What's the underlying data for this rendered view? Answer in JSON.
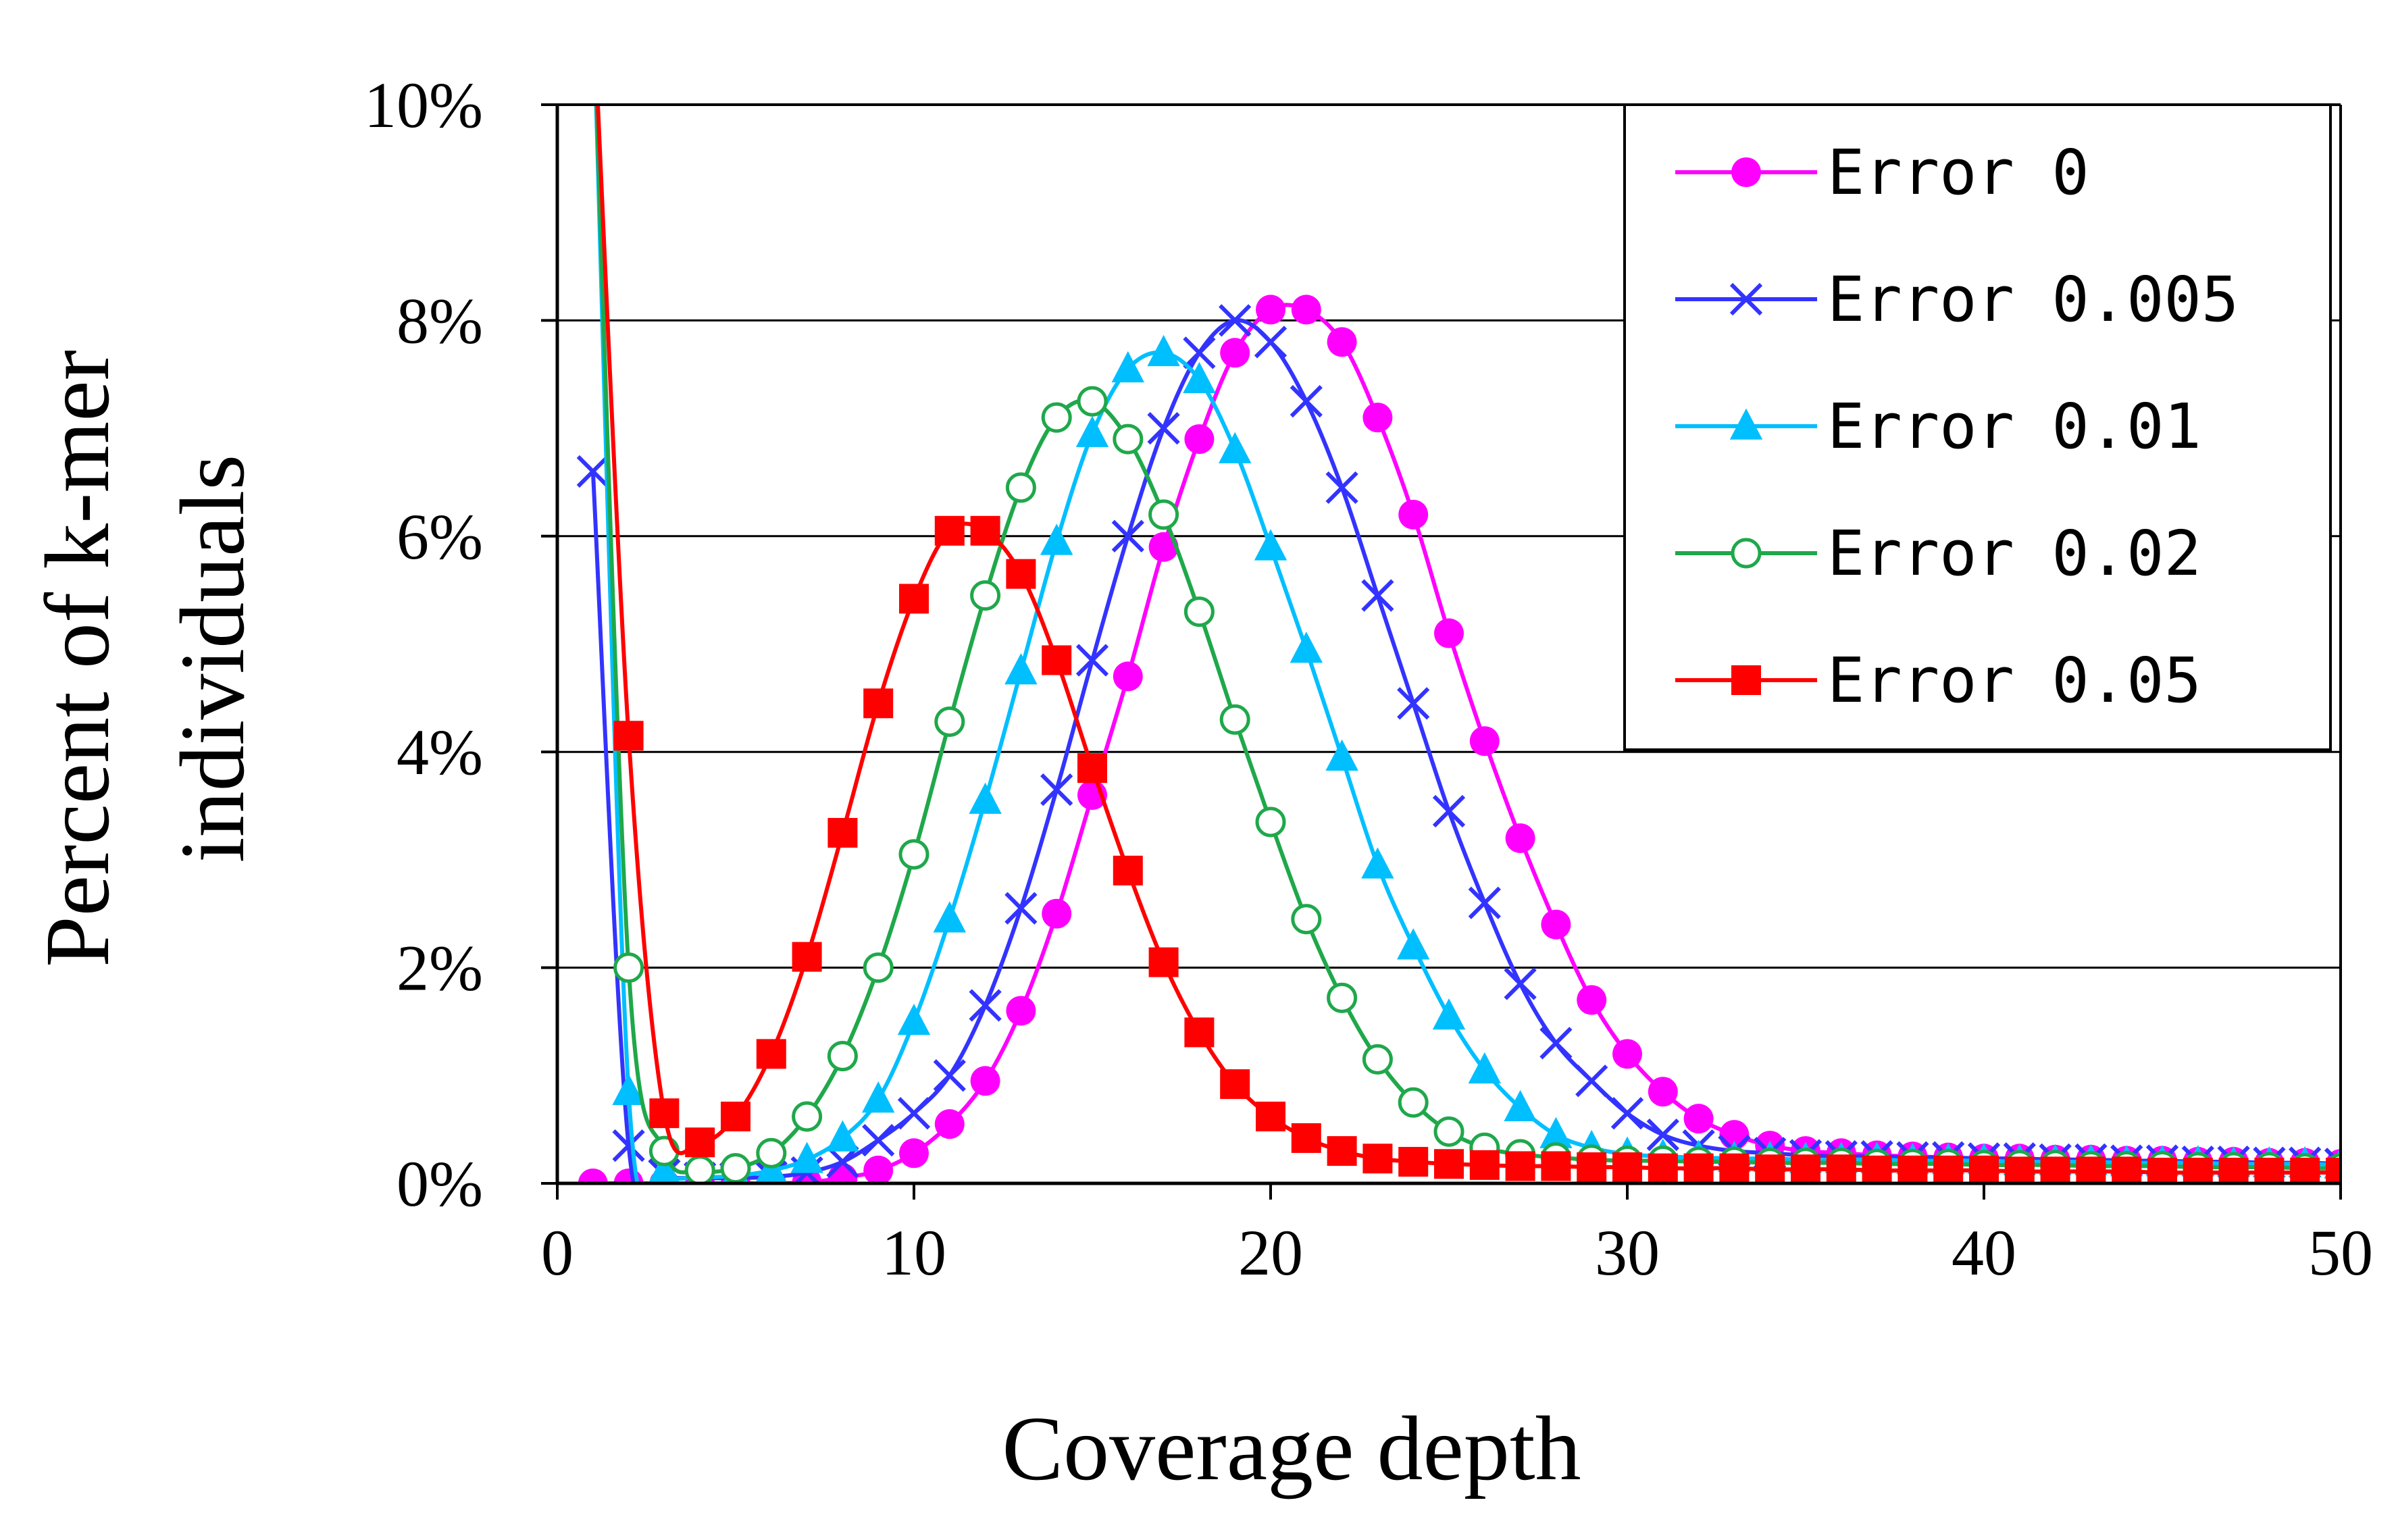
{
  "chart_data": {
    "type": "line",
    "title": "",
    "xlabel": "Coverage depth",
    "ylabel": [
      "Percent of k-mer",
      "individuals"
    ],
    "xlim": [
      0,
      50
    ],
    "ylim": [
      0,
      10
    ],
    "xticks": [
      0,
      10,
      20,
      30,
      40,
      50
    ],
    "xtick_labels": [
      "0",
      "10",
      "20",
      "30",
      "40",
      "50"
    ],
    "yticks": [
      0,
      2,
      4,
      6,
      8,
      10
    ],
    "ytick_labels": [
      "0%",
      "2%",
      "4%",
      "6%",
      "8%",
      "10%"
    ],
    "y_unit": "percent",
    "grid": "horizontal",
    "legend_position": "top-right",
    "x": [
      1,
      2,
      3,
      4,
      5,
      6,
      7,
      8,
      9,
      10,
      11,
      12,
      13,
      14,
      15,
      16,
      17,
      18,
      19,
      20,
      21,
      22,
      23,
      24,
      25,
      26,
      27,
      28,
      29,
      30,
      31,
      32,
      33,
      34,
      35,
      36,
      37,
      38,
      39,
      40,
      41,
      42,
      43,
      44,
      45,
      46,
      47,
      48,
      49,
      50
    ],
    "series": [
      {
        "name": "Error 0",
        "color": "#FF00FF",
        "marker": "circle-filled",
        "values": [
          0.0,
          0.0,
          0.0,
          0.0,
          0.0,
          0.0,
          0.01,
          0.05,
          0.12,
          0.28,
          0.55,
          0.95,
          1.6,
          2.5,
          3.6,
          4.7,
          5.9,
          6.9,
          7.7,
          8.1,
          8.1,
          7.8,
          7.1,
          6.2,
          5.1,
          4.1,
          3.2,
          2.4,
          1.7,
          1.2,
          0.85,
          0.6,
          0.45,
          0.35,
          0.3,
          0.28,
          0.26,
          0.25,
          0.24,
          0.23,
          0.23,
          0.22,
          0.22,
          0.21,
          0.21,
          0.2,
          0.2,
          0.19,
          0.19,
          0.18
        ]
      },
      {
        "name": "Error 0.005",
        "color": "#3333FF",
        "marker": "x",
        "values": [
          6.6,
          0.35,
          0.08,
          0.05,
          0.05,
          0.06,
          0.1,
          0.2,
          0.4,
          0.65,
          1.0,
          1.65,
          2.55,
          3.65,
          4.85,
          6.0,
          7.0,
          7.7,
          8.0,
          7.8,
          7.25,
          6.45,
          5.45,
          4.45,
          3.45,
          2.6,
          1.85,
          1.3,
          0.95,
          0.65,
          0.45,
          0.35,
          0.3,
          0.28,
          0.26,
          0.25,
          0.25,
          0.24,
          0.24,
          0.23,
          0.23,
          0.22,
          0.22,
          0.21,
          0.21,
          0.2,
          0.2,
          0.19,
          0.19,
          0.18
        ]
      },
      {
        "name": "Error 0.01",
        "color": "#00BFFF",
        "marker": "triangle-filled",
        "values": [
          11.0,
          0.85,
          0.12,
          0.06,
          0.07,
          0.12,
          0.22,
          0.42,
          0.78,
          1.5,
          2.45,
          3.55,
          4.75,
          5.95,
          6.95,
          7.55,
          7.7,
          7.45,
          6.8,
          5.9,
          4.95,
          3.95,
          2.95,
          2.2,
          1.55,
          1.05,
          0.7,
          0.45,
          0.33,
          0.27,
          0.25,
          0.24,
          0.23,
          0.23,
          0.22,
          0.22,
          0.22,
          0.21,
          0.21,
          0.21,
          0.2,
          0.2,
          0.2,
          0.19,
          0.19,
          0.19,
          0.18,
          0.18,
          0.18,
          0.17
        ]
      },
      {
        "name": "Error 0.02",
        "color": "#1FA84A",
        "marker": "circle-open",
        "values": [
          11.0,
          2.0,
          0.3,
          0.12,
          0.14,
          0.28,
          0.62,
          1.18,
          2.0,
          3.05,
          4.28,
          5.45,
          6.45,
          7.1,
          7.25,
          6.9,
          6.2,
          5.3,
          4.3,
          3.35,
          2.45,
          1.72,
          1.15,
          0.75,
          0.48,
          0.33,
          0.27,
          0.24,
          0.22,
          0.21,
          0.21,
          0.2,
          0.2,
          0.19,
          0.19,
          0.19,
          0.18,
          0.18,
          0.18,
          0.17,
          0.17,
          0.17,
          0.16,
          0.16,
          0.16,
          0.15,
          0.15,
          0.15,
          0.14,
          0.14
        ]
      },
      {
        "name": "Error 0.05",
        "color": "#FF0000",
        "marker": "square-filled",
        "values": [
          11.0,
          4.15,
          0.65,
          0.38,
          0.62,
          1.2,
          2.1,
          3.25,
          4.45,
          5.42,
          6.05,
          6.05,
          5.65,
          4.85,
          3.85,
          2.9,
          2.05,
          1.4,
          0.92,
          0.62,
          0.42,
          0.3,
          0.23,
          0.2,
          0.18,
          0.17,
          0.16,
          0.16,
          0.15,
          0.15,
          0.14,
          0.14,
          0.14,
          0.13,
          0.13,
          0.13,
          0.12,
          0.12,
          0.12,
          0.12,
          0.11,
          0.11,
          0.11,
          0.11,
          0.1,
          0.1,
          0.1,
          0.1,
          0.1,
          0.1
        ]
      }
    ]
  }
}
